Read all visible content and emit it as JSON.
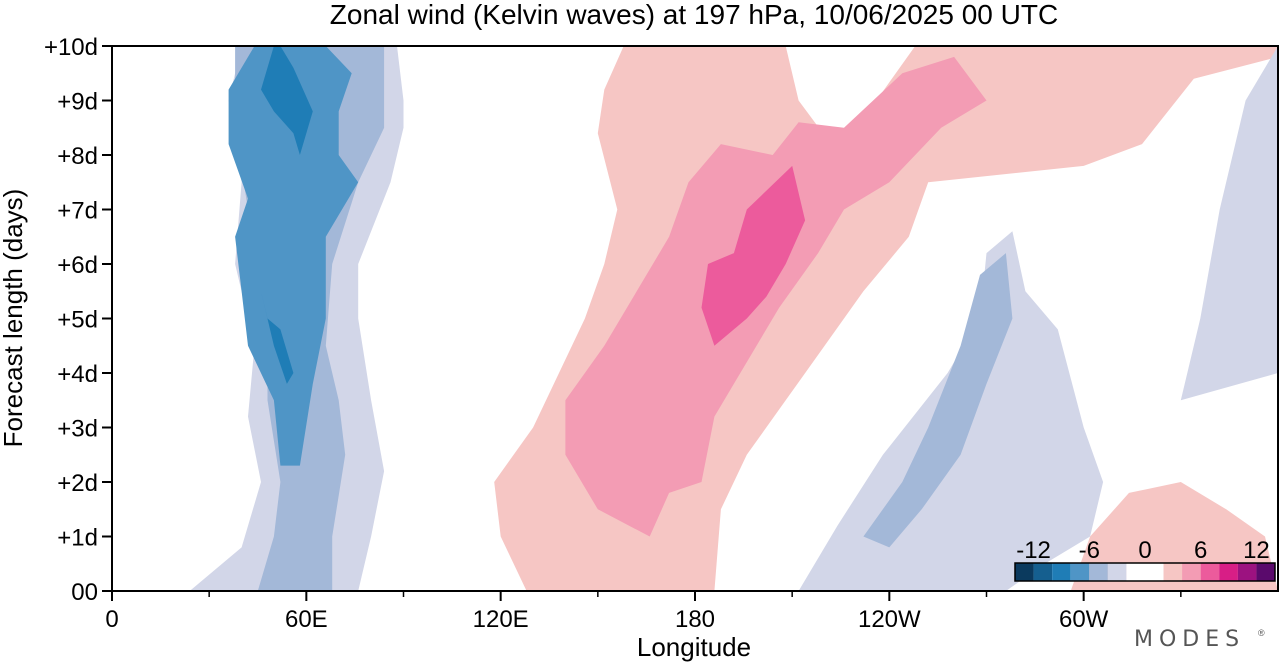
{
  "chart_data": {
    "type": "heatmap",
    "title": "Zonal wind (Kelvin waves) at 197 hPa,  10/06/2025  00 UTC",
    "xlabel": "Longitude",
    "ylabel": "Forecast length (days)",
    "x_ticks": [
      {
        "lon": 0,
        "label": "0"
      },
      {
        "lon": 60,
        "label": "60E"
      },
      {
        "lon": 120,
        "label": "120E"
      },
      {
        "lon": 180,
        "label": "180"
      },
      {
        "lon": 240,
        "label": "120W"
      },
      {
        "lon": 300,
        "label": "60W"
      }
    ],
    "x_minor_ticks": [
      30,
      90,
      150,
      210,
      270,
      330
    ],
    "xlim": [
      0,
      360
    ],
    "y_ticks": [
      {
        "day": 0,
        "label": "00"
      },
      {
        "day": 1,
        "label": "+1d"
      },
      {
        "day": 2,
        "label": "+2d"
      },
      {
        "day": 3,
        "label": "+3d"
      },
      {
        "day": 4,
        "label": "+4d"
      },
      {
        "day": 5,
        "label": "+5d"
      },
      {
        "day": 6,
        "label": "+6d"
      },
      {
        "day": 7,
        "label": "+7d"
      },
      {
        "day": 8,
        "label": "+8d"
      },
      {
        "day": 9,
        "label": "+9d"
      },
      {
        "day": 10,
        "label": "+10d"
      }
    ],
    "ylim": [
      0,
      10
    ],
    "colorbar": {
      "labels": [
        "-12",
        "-6",
        "0",
        "6",
        "12"
      ],
      "label_values": [
        -12,
        -6,
        0,
        6,
        12
      ],
      "levels": [
        -14,
        -12,
        -10,
        -8,
        -6,
        -4,
        -2,
        2,
        4,
        6,
        8,
        10,
        12,
        14
      ],
      "colors": [
        "#0b3a5e",
        "#155f8f",
        "#1f7db6",
        "#4f95c6",
        "#a3b8d8",
        "#d2d6e8",
        "#ffffff",
        "#f6c6c4",
        "#f39cb4",
        "#ec5b9c",
        "#d81e86",
        "#9c1280",
        "#5a0a6c"
      ]
    },
    "features": [
      {
        "name": "easterly band 60E",
        "level": -4,
        "polygon": [
          [
            24,
            0
          ],
          [
            40,
            0.8
          ],
          [
            46,
            2
          ],
          [
            42,
            3.2
          ],
          [
            44,
            4.5
          ],
          [
            38,
            6
          ],
          [
            40,
            7.5
          ],
          [
            36,
            9
          ],
          [
            40,
            10
          ],
          [
            88,
            10
          ],
          [
            90,
            9
          ],
          [
            90,
            8.5
          ],
          [
            86,
            7.5
          ],
          [
            76,
            6
          ],
          [
            76,
            5
          ],
          [
            80,
            3.5
          ],
          [
            84,
            2.2
          ],
          [
            80,
            1
          ],
          [
            76,
            0
          ]
        ]
      },
      {
        "name": "easterly band 60E",
        "level": -6,
        "polygon": [
          [
            45,
            0
          ],
          [
            50,
            1
          ],
          [
            52,
            2
          ],
          [
            48,
            3.5
          ],
          [
            48,
            4.5
          ],
          [
            40,
            6
          ],
          [
            42,
            7
          ],
          [
            38,
            8.5
          ],
          [
            38,
            10
          ],
          [
            84,
            10
          ],
          [
            84,
            8.5
          ],
          [
            76,
            7.5
          ],
          [
            68,
            6
          ],
          [
            66,
            4.5
          ],
          [
            70,
            3.5
          ],
          [
            72,
            2.5
          ],
          [
            68,
            1
          ],
          [
            68,
            0
          ]
        ]
      },
      {
        "name": "easterly band 60E",
        "level": -8,
        "polygon": [
          [
            52,
            2.3
          ],
          [
            50,
            3.5
          ],
          [
            42,
            4.5
          ],
          [
            40,
            5.5
          ],
          [
            38,
            6.5
          ],
          [
            42,
            7.2
          ],
          [
            36,
            8.2
          ],
          [
            36,
            9.2
          ],
          [
            44,
            10
          ],
          [
            66,
            10
          ],
          [
            74,
            9.5
          ],
          [
            70,
            8.8
          ],
          [
            70,
            8
          ],
          [
            76,
            7.5
          ],
          [
            66,
            6.5
          ],
          [
            66,
            5
          ],
          [
            62,
            3.8
          ],
          [
            58,
            2.3
          ]
        ]
      },
      {
        "name": "easterly core 60E",
        "level": -10,
        "polygon": [
          [
            48,
            5
          ],
          [
            52,
            4.8
          ],
          [
            56,
            4
          ],
          [
            54,
            3.8
          ],
          [
            50,
            4.5
          ],
          [
            46,
            5.5
          ]
        ]
      },
      {
        "name": "easterly core 60E upper",
        "level": -10,
        "polygon": [
          [
            46,
            9.2
          ],
          [
            50,
            8.8
          ],
          [
            56,
            8.4
          ],
          [
            58,
            8
          ],
          [
            62,
            8.8
          ],
          [
            56,
            9.6
          ],
          [
            52,
            10
          ],
          [
            50,
            10
          ]
        ]
      },
      {
        "name": "westerly band 180",
        "level": 2,
        "polygon": [
          [
            128,
            0
          ],
          [
            120,
            1
          ],
          [
            118,
            2
          ],
          [
            130,
            3
          ],
          [
            146,
            5
          ],
          [
            152,
            6
          ],
          [
            156,
            7
          ],
          [
            150,
            8.4
          ],
          [
            152,
            9.2
          ],
          [
            158,
            10
          ],
          [
            208,
            10
          ],
          [
            212,
            9
          ],
          [
            222,
            8.2
          ],
          [
            236,
            9
          ],
          [
            248,
            10
          ],
          [
            360,
            10
          ],
          [
            360,
            9.8
          ],
          [
            334,
            9.4
          ],
          [
            318,
            8.2
          ],
          [
            300,
            7.8
          ],
          [
            252,
            7.5
          ],
          [
            246,
            6.5
          ],
          [
            232,
            5.5
          ],
          [
            220,
            4.5
          ],
          [
            208,
            3.5
          ],
          [
            196,
            2.5
          ],
          [
            188,
            1.5
          ],
          [
            186,
            0
          ]
        ]
      },
      {
        "name": "westerly core 180",
        "level": 4,
        "polygon": [
          [
            150,
            1.5
          ],
          [
            140,
            2.5
          ],
          [
            140,
            3.5
          ],
          [
            152,
            4.5
          ],
          [
            162,
            5.5
          ],
          [
            172,
            6.5
          ],
          [
            178,
            7.5
          ],
          [
            188,
            8.2
          ],
          [
            204,
            8
          ],
          [
            212,
            8.6
          ],
          [
            226,
            8.5
          ],
          [
            244,
            9.5
          ],
          [
            260,
            9.8
          ],
          [
            270,
            9
          ],
          [
            256,
            8.5
          ],
          [
            240,
            7.5
          ],
          [
            226,
            7
          ],
          [
            218,
            6.2
          ],
          [
            206,
            5.2
          ],
          [
            196,
            4.2
          ],
          [
            186,
            3.2
          ],
          [
            182,
            2
          ],
          [
            172,
            1.8
          ],
          [
            166,
            1
          ]
        ]
      },
      {
        "name": "westerly core 180 max",
        "level": 6,
        "polygon": [
          [
            186,
            4.5
          ],
          [
            182,
            5.2
          ],
          [
            184,
            6
          ],
          [
            192,
            6.2
          ],
          [
            196,
            7
          ],
          [
            210,
            7.8
          ],
          [
            214,
            6.8
          ],
          [
            208,
            6
          ],
          [
            202,
            5.4
          ],
          [
            196,
            5
          ]
        ]
      },
      {
        "name": "easterly band 120W",
        "level": -4,
        "polygon": [
          [
            212,
            0
          ],
          [
            224,
            1.2
          ],
          [
            238,
            2.5
          ],
          [
            258,
            4
          ],
          [
            268,
            5
          ],
          [
            270,
            6.2
          ],
          [
            278,
            6.6
          ],
          [
            282,
            5.5
          ],
          [
            292,
            4.8
          ],
          [
            300,
            3
          ],
          [
            306,
            2
          ],
          [
            302,
            1
          ],
          [
            288,
            0.5
          ],
          [
            276,
            0
          ]
        ]
      },
      {
        "name": "easterly core 120W",
        "level": -6,
        "polygon": [
          [
            232,
            1
          ],
          [
            244,
            2
          ],
          [
            252,
            3
          ],
          [
            262,
            4.5
          ],
          [
            268,
            5.8
          ],
          [
            276,
            6.2
          ],
          [
            278,
            5
          ],
          [
            270,
            3.8
          ],
          [
            262,
            2.5
          ],
          [
            250,
            1.5
          ],
          [
            240,
            0.8
          ]
        ]
      },
      {
        "name": "easterly band 60W upper",
        "level": -4,
        "polygon": [
          [
            330,
            3.5
          ],
          [
            336,
            5
          ],
          [
            342,
            7
          ],
          [
            350,
            9
          ],
          [
            360,
            10
          ],
          [
            360,
            4
          ]
        ]
      },
      {
        "name": "westerly 60W lower",
        "level": 2,
        "polygon": [
          [
            296,
            0
          ],
          [
            302,
            1
          ],
          [
            314,
            1.8
          ],
          [
            330,
            2
          ],
          [
            344,
            1.5
          ],
          [
            356,
            1
          ],
          [
            360,
            0
          ]
        ]
      }
    ]
  },
  "legend_placement": "bottom-right",
  "branding": "MODES"
}
